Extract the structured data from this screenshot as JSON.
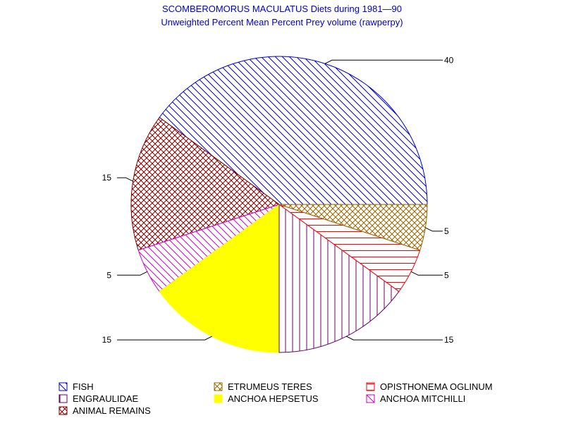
{
  "chart_data": {
    "type": "pie",
    "title": "SCOMBEROMORUS MACULATUS Diets during 1981—90",
    "subtitle": "Unweighted Percent Mean Percent Prey  volume (rawperpy)",
    "slices": [
      {
        "name": "FISH",
        "value": 40,
        "label": "40",
        "color": "#0000cc",
        "pattern": "diag-down"
      },
      {
        "name": "ANIMAL REMAINS",
        "value": 15,
        "label": "15",
        "color": "#800000",
        "pattern": "crosshatch"
      },
      {
        "name": "ANCHOA MITCHILLI",
        "value": 5,
        "label": "5",
        "color": "#cc00cc",
        "pattern": "diag-down"
      },
      {
        "name": "ANCHOA HEPSETUS",
        "value": 15,
        "label": "15",
        "color": "#ffff00",
        "pattern": "solid"
      },
      {
        "name": "ENGRAULIDAE",
        "value": 15,
        "label": "15",
        "color": "#660066",
        "pattern": "vertical"
      },
      {
        "name": "OPISTHONEMA OGLINUM",
        "value": 5,
        "label": "5",
        "color": "#ff0000",
        "pattern": "horizontal"
      },
      {
        "name": "ETRUMEUS TERES",
        "value": 5,
        "label": "5",
        "color": "#996600",
        "pattern": "crosshatch"
      }
    ],
    "legend": [
      "FISH",
      "ETRUMEUS TERES",
      "OPISTHONEMA OGLINUM",
      "ENGRAULIDAE",
      "ANCHOA HEPSETUS",
      "ANCHOA MITCHILLI",
      "ANIMAL REMAINS"
    ],
    "legend_position": "bottom"
  }
}
